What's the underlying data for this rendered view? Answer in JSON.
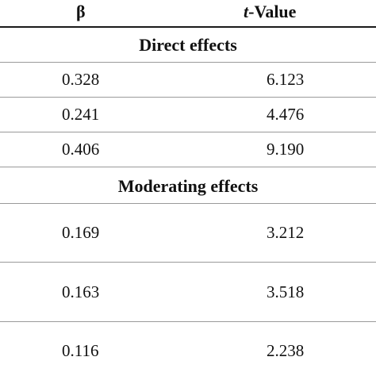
{
  "table": {
    "header": {
      "beta": "β",
      "t_prefix": "t",
      "t_suffix": "-Value"
    },
    "sections": [
      {
        "title": "Direct effects",
        "rows": [
          {
            "beta": "0.328",
            "t": "6.123"
          },
          {
            "beta": "0.241",
            "t": "4.476"
          },
          {
            "beta": "0.406",
            "t": "9.190"
          }
        ]
      },
      {
        "title": "Moderating effects",
        "rows": [
          {
            "beta": "0.169",
            "t": "3.212"
          },
          {
            "beta": "0.163",
            "t": "3.518"
          },
          {
            "beta": "0.116",
            "t": "2.238"
          }
        ]
      }
    ]
  }
}
